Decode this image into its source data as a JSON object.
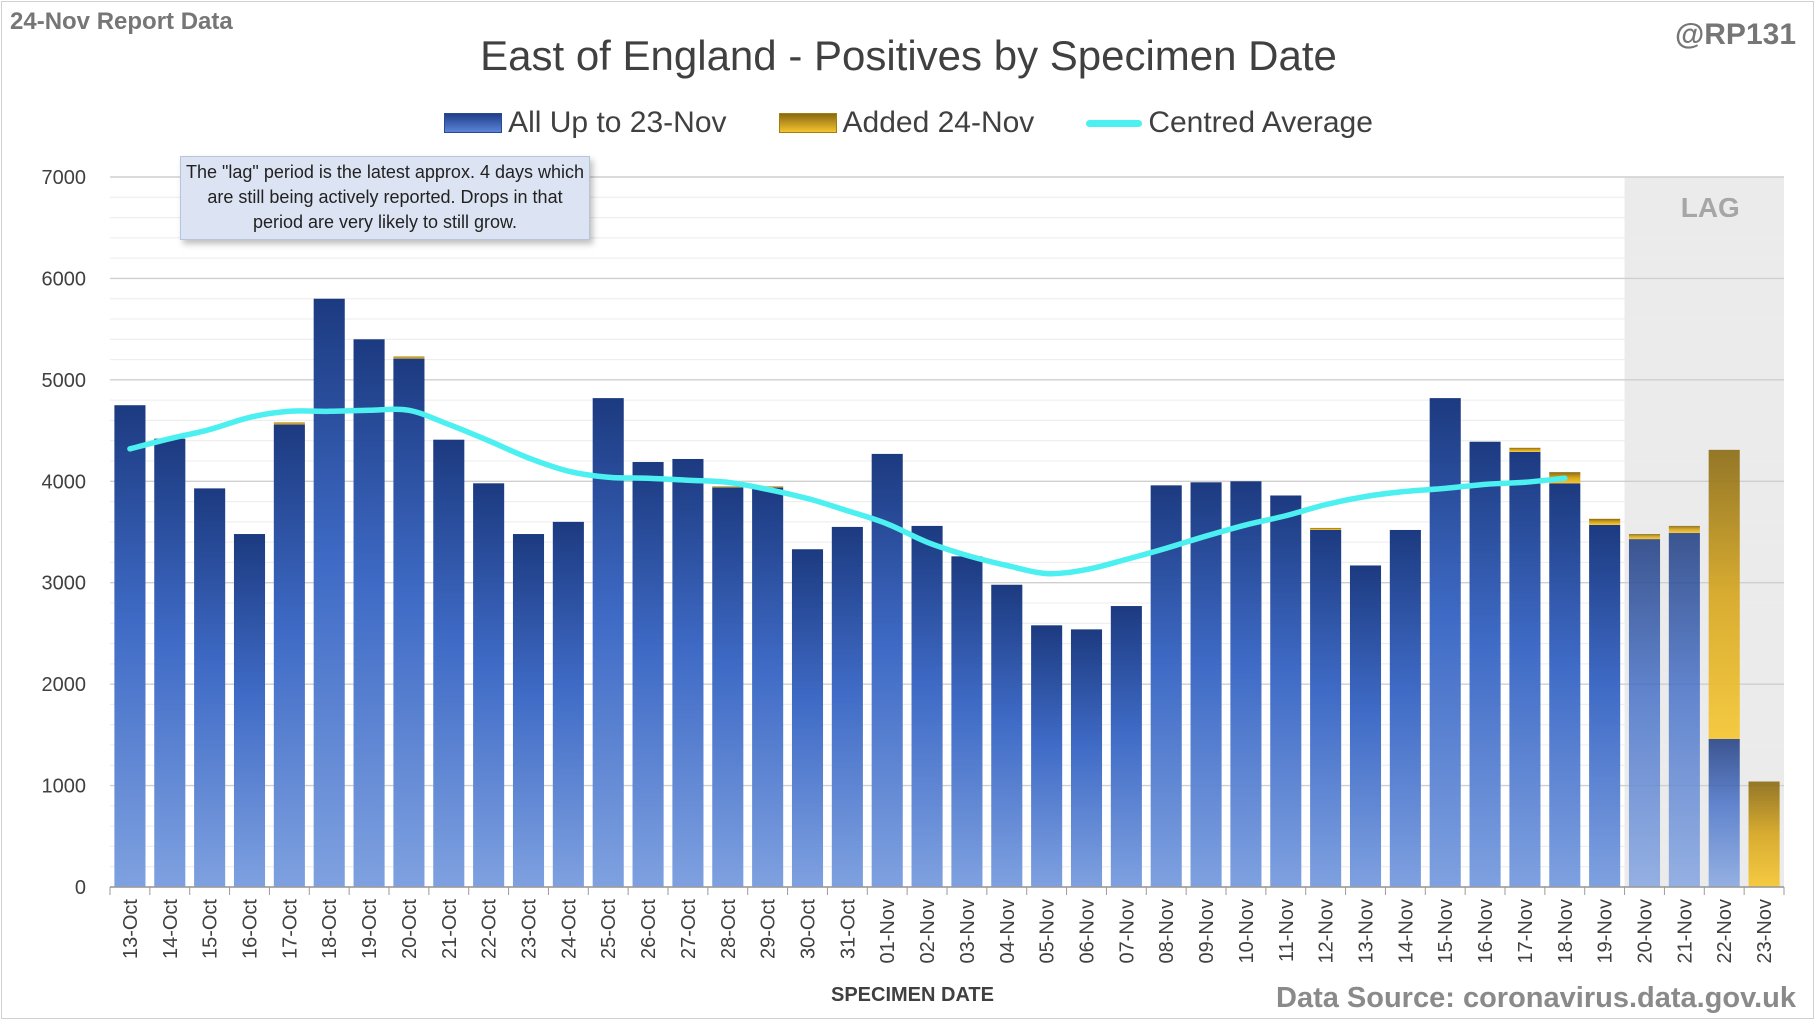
{
  "header": {
    "report_label": "24-Nov Report Data",
    "handle": "@RP131",
    "source": "Data Source: coronavirus.data.gov.uk",
    "note": "The \"lag\" period is the latest approx. 4 days which are still being actively reported.  Drops in that period are very likely to still grow."
  },
  "colors": {
    "bar_base": "#2b4b93",
    "bar_added": "#e8b820",
    "line": "#4df0f0",
    "lag_shade": "#ebebeb"
  },
  "chart_data": {
    "type": "bar",
    "title": "East of England - Positives by Specimen Date",
    "xlabel": "SPECIMEN DATE",
    "ylabel": "",
    "ylim": [
      0,
      7000
    ],
    "yticks": [
      0,
      1000,
      2000,
      3000,
      4000,
      5000,
      6000,
      7000
    ],
    "grid": true,
    "legend_position": "top",
    "lag_label": "LAG",
    "lag_categories": [
      "20-Nov",
      "21-Nov",
      "22-Nov",
      "23-Nov"
    ],
    "categories": [
      "13-Oct",
      "14-Oct",
      "15-Oct",
      "16-Oct",
      "17-Oct",
      "18-Oct",
      "19-Oct",
      "20-Oct",
      "21-Oct",
      "22-Oct",
      "23-Oct",
      "24-Oct",
      "25-Oct",
      "26-Oct",
      "27-Oct",
      "28-Oct",
      "29-Oct",
      "30-Oct",
      "31-Oct",
      "01-Nov",
      "02-Nov",
      "03-Nov",
      "04-Nov",
      "05-Nov",
      "06-Nov",
      "07-Nov",
      "08-Nov",
      "09-Nov",
      "10-Nov",
      "11-Nov",
      "12-Nov",
      "13-Nov",
      "14-Nov",
      "15-Nov",
      "16-Nov",
      "17-Nov",
      "18-Nov",
      "19-Nov",
      "20-Nov",
      "21-Nov",
      "22-Nov",
      "23-Nov"
    ],
    "series": [
      {
        "name": "All Up to 23-Nov",
        "stack": true,
        "values": [
          4750,
          4420,
          3930,
          3480,
          4560,
          5800,
          5400,
          5210,
          4410,
          3980,
          3480,
          3600,
          4820,
          4190,
          4220,
          3940,
          3940,
          3330,
          3550,
          4270,
          3560,
          3260,
          2980,
          2580,
          2540,
          2770,
          3960,
          3990,
          4000,
          3860,
          3520,
          3170,
          3520,
          4820,
          4390,
          4290,
          3980,
          3570,
          3430,
          3490,
          1460,
          0
        ]
      },
      {
        "name": "Added 24-Nov",
        "stack": true,
        "values": [
          0,
          0,
          0,
          0,
          20,
          0,
          0,
          20,
          0,
          0,
          0,
          0,
          0,
          0,
          0,
          10,
          10,
          0,
          0,
          0,
          0,
          0,
          0,
          0,
          0,
          0,
          0,
          0,
          0,
          0,
          20,
          0,
          0,
          0,
          0,
          40,
          110,
          60,
          50,
          70,
          2850,
          1040
        ]
      },
      {
        "name": "Centred Average",
        "type": "line",
        "values": [
          4320,
          4420,
          4510,
          4630,
          4690,
          4690,
          4700,
          4700,
          4560,
          4400,
          4230,
          4100,
          4040,
          4030,
          4010,
          3990,
          3920,
          3830,
          3710,
          3580,
          3400,
          3270,
          3170,
          3090,
          3130,
          3230,
          3340,
          3460,
          3570,
          3660,
          3770,
          3850,
          3900,
          3930,
          3970,
          3990,
          4030,
          null,
          null,
          null,
          null,
          null
        ]
      }
    ]
  }
}
